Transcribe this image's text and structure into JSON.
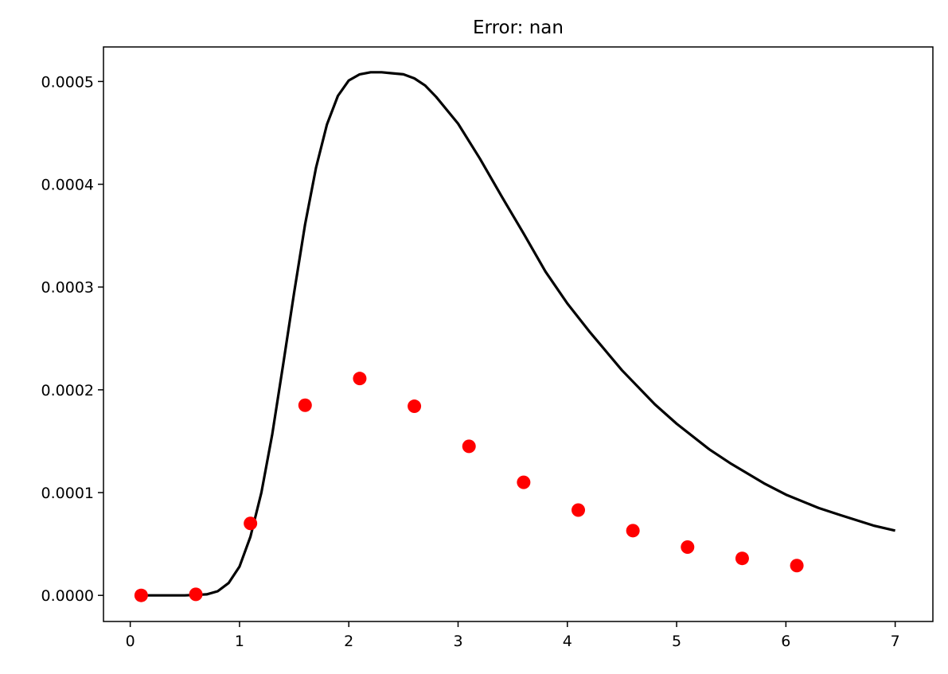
{
  "chart_data": {
    "type": "scatter",
    "title": "Error: nan",
    "xlabel": "",
    "ylabel": "",
    "xlim": [
      -0.245,
      7.345
    ],
    "ylim": [
      -2.54e-05,
      0.0005336
    ],
    "xticks": [
      0,
      1,
      2,
      3,
      4,
      5,
      6,
      7
    ],
    "xtick_labels": [
      "0",
      "1",
      "2",
      "3",
      "4",
      "5",
      "6",
      "7"
    ],
    "yticks": [
      0,
      0.0001,
      0.0002,
      0.0003,
      0.0004,
      0.0005
    ],
    "ytick_labels": [
      "0.0000",
      "0.0001",
      "0.0002",
      "0.0003",
      "0.0004",
      "0.0005"
    ],
    "grid": false,
    "legend": false,
    "series": [
      {
        "kind": "scatter",
        "color": "#ff0000",
        "x": [
          0.1,
          0.6,
          1.1,
          1.6,
          2.1,
          2.6,
          3.1,
          3.6,
          4.1,
          4.6,
          5.1,
          5.6,
          6.1
        ],
        "y": [
          0.0,
          1e-06,
          7e-05,
          0.000185,
          0.000211,
          0.000184,
          0.000145,
          0.00011,
          8.3e-05,
          6.3e-05,
          4.7e-05,
          3.6e-05,
          2.9e-05
        ]
      },
      {
        "kind": "line",
        "color": "#000000",
        "x": [
          0.1,
          0.3,
          0.5,
          0.7,
          0.8,
          0.9,
          1.0,
          1.1,
          1.2,
          1.3,
          1.4,
          1.5,
          1.6,
          1.7,
          1.8,
          1.9,
          2.0,
          2.1,
          2.2,
          2.3,
          2.4,
          2.5,
          2.6,
          2.7,
          2.8,
          3.0,
          3.2,
          3.4,
          3.6,
          3.8,
          4.0,
          4.2,
          4.5,
          4.8,
          5.0,
          5.3,
          5.5,
          5.8,
          6.0,
          6.3,
          6.5,
          6.8,
          7.0
        ],
        "y": [
          0.0,
          0.0,
          0.0,
          1e-06,
          4e-06,
          1.2e-05,
          2.8e-05,
          5.7e-05,
          0.0001,
          0.000157,
          0.000225,
          0.000295,
          0.000361,
          0.000416,
          0.000458,
          0.000486,
          0.000501,
          0.000507,
          0.000509,
          0.000509,
          0.000508,
          0.000507,
          0.000503,
          0.000496,
          0.000485,
          0.000459,
          0.000425,
          0.000388,
          0.000352,
          0.000315,
          0.000284,
          0.000257,
          0.000219,
          0.000186,
          0.000167,
          0.000142,
          0.000128,
          0.000109,
          9.8e-05,
          8.5e-05,
          7.8e-05,
          6.8e-05,
          6.3e-05
        ]
      }
    ]
  }
}
